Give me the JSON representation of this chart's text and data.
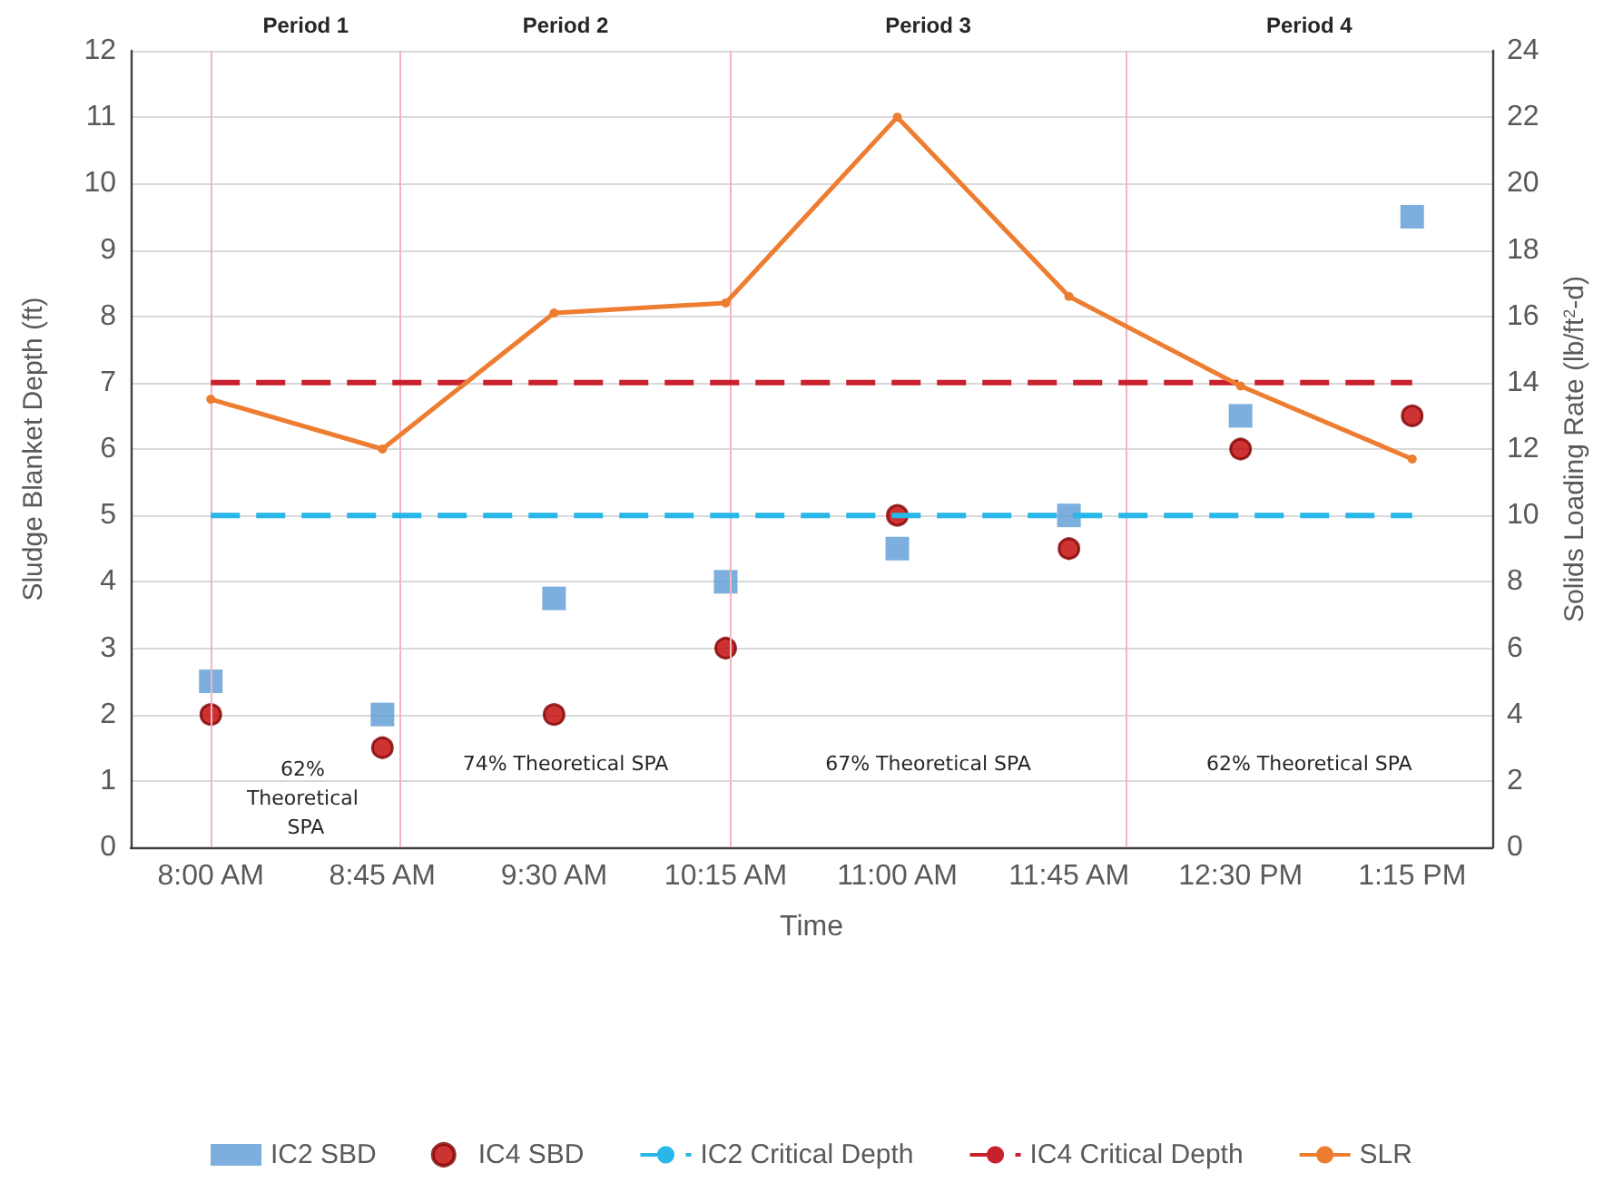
{
  "chart_data": {
    "type": "scatter",
    "xlabel": "Time",
    "ylabel": "Sludge Blanket Depth (ft)",
    "y2label": "Solids Loading Rate (lb/ft$^{2}$-d)",
    "xlim": [
      7.65,
      13.6
    ],
    "xticks": [
      {
        "value": 8,
        "label": "8:00 AM"
      },
      {
        "value": 8.75,
        "label": "8:45 AM"
      },
      {
        "value": 9.5,
        "label": "9:30 AM"
      },
      {
        "value": 10.25,
        "label": "10:15 AM"
      },
      {
        "value": 11,
        "label": "11:00 AM"
      },
      {
        "value": 11.75,
        "label": "11:45 AM"
      },
      {
        "value": 12.5,
        "label": "12:30 PM"
      },
      {
        "value": 13.25,
        "label": "1:15 PM"
      }
    ],
    "ylim": [
      0,
      12
    ],
    "yticks": [
      0,
      1,
      2,
      3,
      4,
      5,
      6,
      7,
      8,
      9,
      10,
      11,
      12
    ],
    "y2lim": [
      0,
      24
    ],
    "y2ticks": [
      0,
      2,
      4,
      6,
      8,
      10,
      12,
      14,
      16,
      18,
      20,
      22,
      24
    ],
    "x": [
      8,
      8.75,
      9.5,
      10.25,
      11,
      11.75,
      12.5,
      13.25
    ],
    "series": [
      {
        "name": "IC2 SBD",
        "marker": "square",
        "color": "#5b9bd5",
        "values": [
          2.5,
          2,
          3.75,
          4,
          4.5,
          5,
          6.5,
          9.5
        ]
      },
      {
        "name": "IC4 SBD",
        "marker": "circle",
        "color": "#c00000",
        "values": [
          2,
          1.5,
          2,
          3,
          5,
          4.5,
          6,
          6.5
        ]
      },
      {
        "name": "IC2 Critical Depth",
        "type": "line",
        "marker": "none",
        "line_style": "dashed",
        "color": "#29b6e8",
        "values": [
          5,
          5,
          5,
          5,
          5,
          5,
          5,
          5
        ]
      },
      {
        "name": "IC4 Critical Depth",
        "type": "line",
        "marker": "none",
        "line_style": "dashed",
        "color": "#c8202c",
        "values": [
          7,
          7,
          7,
          7,
          7,
          7,
          7,
          7
        ]
      },
      {
        "name": "SLR",
        "type": "line",
        "marker": "circle",
        "line_style": "solid",
        "color": "#ed7d31",
        "axis": "y2",
        "values": [
          13.5,
          12,
          16.1,
          16.4,
          22,
          16.6,
          13.9,
          11.7
        ]
      }
    ],
    "ref_lines": [
      {
        "axis": "x",
        "value": 8,
        "color": "#f4b4c0"
      },
      {
        "axis": "x",
        "value": 8.83,
        "color": "#f4b4c0"
      },
      {
        "axis": "x",
        "value": 10.27,
        "color": "#f4b4c0"
      },
      {
        "axis": "x",
        "value": 12,
        "color": "#f4b4c0"
      }
    ],
    "annotations": [
      "Period 1",
      "Period 2",
      "Period 3",
      "Period 4",
      "62% Theoretical SPA",
      "74% Theoretical SPA",
      "67% Theoretical SPA",
      "62% Theoretical SPA"
    ],
    "grid": "y",
    "legend": "bottom"
  }
}
